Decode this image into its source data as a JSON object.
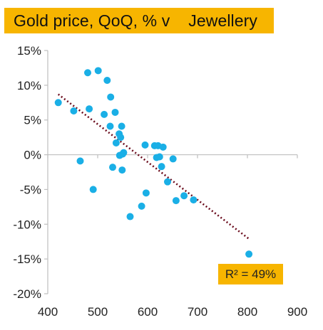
{
  "chart_data": {
    "type": "scatter",
    "title": "Gold price, QoQ, % v    Jewellery",
    "xlabel": "",
    "ylabel": "",
    "xlim": [
      400,
      900
    ],
    "ylim": [
      -20,
      15
    ],
    "x_ticks": [
      "400",
      "500",
      "600",
      "700",
      "800",
      "900"
    ],
    "y_ticks": [
      "15%",
      "10%",
      "5%",
      "0%",
      "-5%",
      "-10%",
      "-15%",
      "-20%"
    ],
    "grid": false,
    "colors": {
      "points": "#1aafe6",
      "trendline": "#6b0d1e",
      "annotation_bg": "#f7b500",
      "axis": "#bfbfbf"
    },
    "series": [
      {
        "points": [
          [
            421,
            7.5
          ],
          [
            452,
            6.3
          ],
          [
            465,
            -0.9
          ],
          [
            480,
            11.8
          ],
          [
            483,
            6.6
          ],
          [
            491,
            -5.0
          ],
          [
            501,
            12.1
          ],
          [
            513,
            5.8
          ],
          [
            519,
            10.7
          ],
          [
            525,
            4.1
          ],
          [
            526,
            8.3
          ],
          [
            530,
            -1.8
          ],
          [
            535,
            6.1
          ],
          [
            537,
            1.7
          ],
          [
            543,
            3.0
          ],
          [
            544,
            -0.1
          ],
          [
            546,
            2.5
          ],
          [
            548,
            4.1
          ],
          [
            549,
            -2.2
          ],
          [
            550,
            0.1
          ],
          [
            552,
            0.3
          ],
          [
            565,
            -8.9
          ],
          [
            588,
            -7.4
          ],
          [
            595,
            1.4
          ],
          [
            597,
            -5.5
          ],
          [
            614,
            1.3
          ],
          [
            618,
            -0.4
          ],
          [
            621,
            1.3
          ],
          [
            624,
            -0.3
          ],
          [
            628,
            -1.7
          ],
          [
            631,
            1.1
          ],
          [
            640,
            -3.9
          ],
          [
            651,
            -0.6
          ],
          [
            657,
            -6.6
          ],
          [
            673,
            -5.9
          ],
          [
            692,
            -6.5
          ],
          [
            803,
            -14.3
          ]
        ]
      }
    ],
    "trendline": {
      "x": [
        421,
        803
      ],
      "y": [
        8.7,
        -12.1
      ],
      "style": "dotted"
    },
    "annotation": "R² = 49%"
  }
}
